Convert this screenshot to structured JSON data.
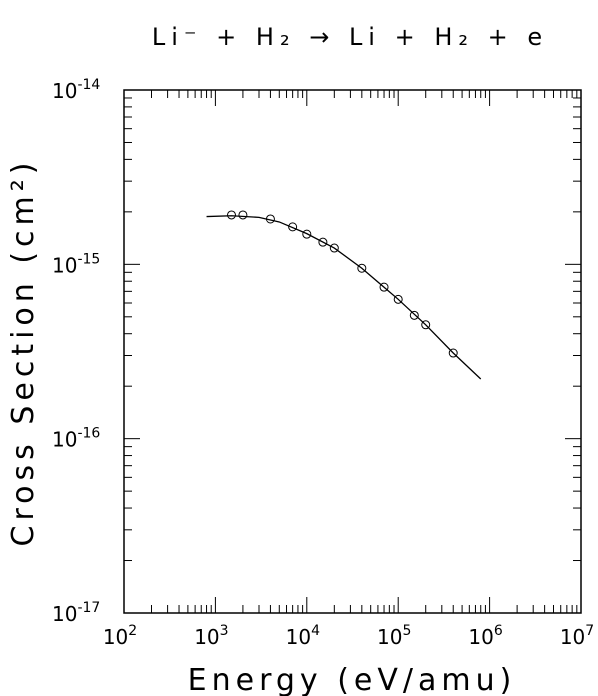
{
  "chart_data": {
    "type": "scatter",
    "title": "Li⁻ + H₂ → Li + H₂ + e",
    "x_label": "Energy (eV/amu)",
    "y_label": "Cross Section (cm²)",
    "x_log": true,
    "y_log": true,
    "xlim": [
      100,
      10000000
    ],
    "ylim": [
      1e-17,
      1e-14
    ],
    "xticks": [
      {
        "value": 100,
        "label": "10^2"
      },
      {
        "value": 1000,
        "label": "10^3"
      },
      {
        "value": 10000,
        "label": "10^4"
      },
      {
        "value": 100000,
        "label": "10^5"
      },
      {
        "value": 1000000,
        "label": "10^6"
      },
      {
        "value": 10000000,
        "label": "10^7"
      }
    ],
    "yticks": [
      {
        "value": 1e-17,
        "label": "10^-17"
      },
      {
        "value": 1e-16,
        "label": "10^-16"
      },
      {
        "value": 1e-15,
        "label": "10^-15"
      },
      {
        "value": 1e-14,
        "label": "10^-14"
      }
    ],
    "points": {
      "x": [
        1500,
        2000,
        4000,
        7000,
        10000,
        15000,
        20000,
        40000,
        70000,
        100000,
        150000,
        200000,
        400000
      ],
      "values": [
        1.92e-15,
        1.92e-15,
        1.82e-15,
        1.64e-15,
        1.49e-15,
        1.34e-15,
        1.24e-15,
        9.5e-16,
        7.4e-16,
        6.3e-16,
        5.1e-16,
        4.5e-16,
        3.1e-16
      ]
    },
    "fit": {
      "x": [
        800,
        1500,
        3000,
        5000,
        10000,
        20000,
        40000,
        100000,
        200000,
        400000,
        800000
      ],
      "values": [
        1.88e-15,
        1.9e-15,
        1.86e-15,
        1.75e-15,
        1.5e-15,
        1.24e-15,
        9.5e-16,
        6.3e-16,
        4.5e-16,
        3.1e-16,
        2.2e-16
      ]
    },
    "color": "#000000"
  }
}
